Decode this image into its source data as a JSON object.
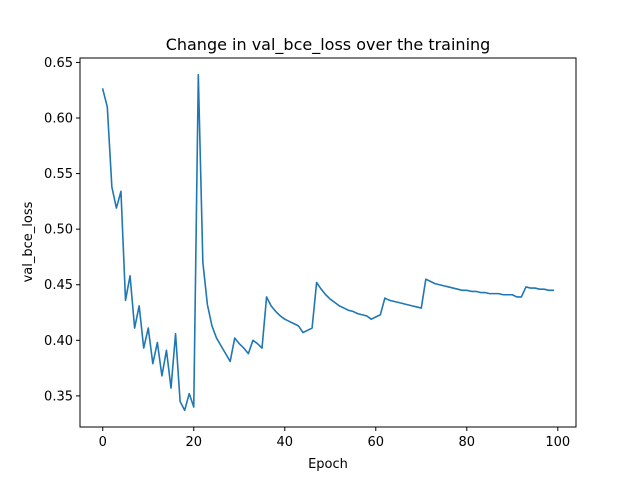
{
  "chart_data": {
    "type": "line",
    "title": "Change in val_bce_loss over the training",
    "xlabel": "Epoch",
    "ylabel": "val_bce_loss",
    "xlim": [
      -5,
      104
    ],
    "ylim": [
      0.322,
      0.654
    ],
    "xticks": [
      0,
      20,
      40,
      60,
      80,
      100
    ],
    "xtick_labels": [
      "0",
      "20",
      "40",
      "60",
      "80",
      "100"
    ],
    "yticks": [
      0.35,
      0.4,
      0.45,
      0.5,
      0.55,
      0.6,
      0.65
    ],
    "ytick_labels": [
      "0.35",
      "0.40",
      "0.45",
      "0.50",
      "0.55",
      "0.60",
      "0.65"
    ],
    "grid": false,
    "line_color": "#1f77b4",
    "series": [
      {
        "x": [
          0,
          1,
          2,
          3,
          4,
          5,
          6,
          7,
          8,
          9,
          10,
          11,
          12,
          13,
          14,
          15,
          16,
          17,
          18,
          19,
          20,
          21,
          22,
          23,
          24,
          25,
          26,
          27,
          28,
          29,
          30,
          31,
          32,
          33,
          34,
          35,
          36,
          37,
          38,
          39,
          40,
          41,
          42,
          43,
          44,
          45,
          46,
          47,
          48,
          49,
          50,
          51,
          52,
          53,
          54,
          55,
          56,
          57,
          58,
          59,
          60,
          61,
          62,
          63,
          64,
          65,
          66,
          67,
          68,
          69,
          70,
          71,
          72,
          73,
          74,
          75,
          76,
          77,
          78,
          79,
          80,
          81,
          82,
          83,
          84,
          85,
          86,
          87,
          88,
          89,
          90,
          91,
          92,
          93,
          94,
          95,
          96,
          97,
          98,
          99
        ],
        "y": [
          0.626,
          0.61,
          0.538,
          0.519,
          0.534,
          0.436,
          0.458,
          0.411,
          0.431,
          0.393,
          0.411,
          0.379,
          0.398,
          0.368,
          0.391,
          0.357,
          0.406,
          0.345,
          0.337,
          0.352,
          0.34,
          0.639,
          0.47,
          0.432,
          0.413,
          0.402,
          0.395,
          0.388,
          0.381,
          0.402,
          0.397,
          0.393,
          0.388,
          0.4,
          0.397,
          0.393,
          0.439,
          0.431,
          0.426,
          0.422,
          0.419,
          0.417,
          0.415,
          0.413,
          0.407,
          0.409,
          0.411,
          0.452,
          0.446,
          0.441,
          0.437,
          0.434,
          0.431,
          0.429,
          0.427,
          0.426,
          0.424,
          0.423,
          0.422,
          0.419,
          0.421,
          0.423,
          0.438,
          0.436,
          0.435,
          0.434,
          0.433,
          0.432,
          0.431,
          0.43,
          0.429,
          0.455,
          0.453,
          0.451,
          0.45,
          0.449,
          0.448,
          0.447,
          0.446,
          0.445,
          0.445,
          0.444,
          0.444,
          0.443,
          0.443,
          0.442,
          0.442,
          0.442,
          0.441,
          0.441,
          0.441,
          0.439,
          0.439,
          0.448,
          0.447,
          0.447,
          0.446,
          0.446,
          0.445,
          0.445
        ]
      }
    ]
  }
}
